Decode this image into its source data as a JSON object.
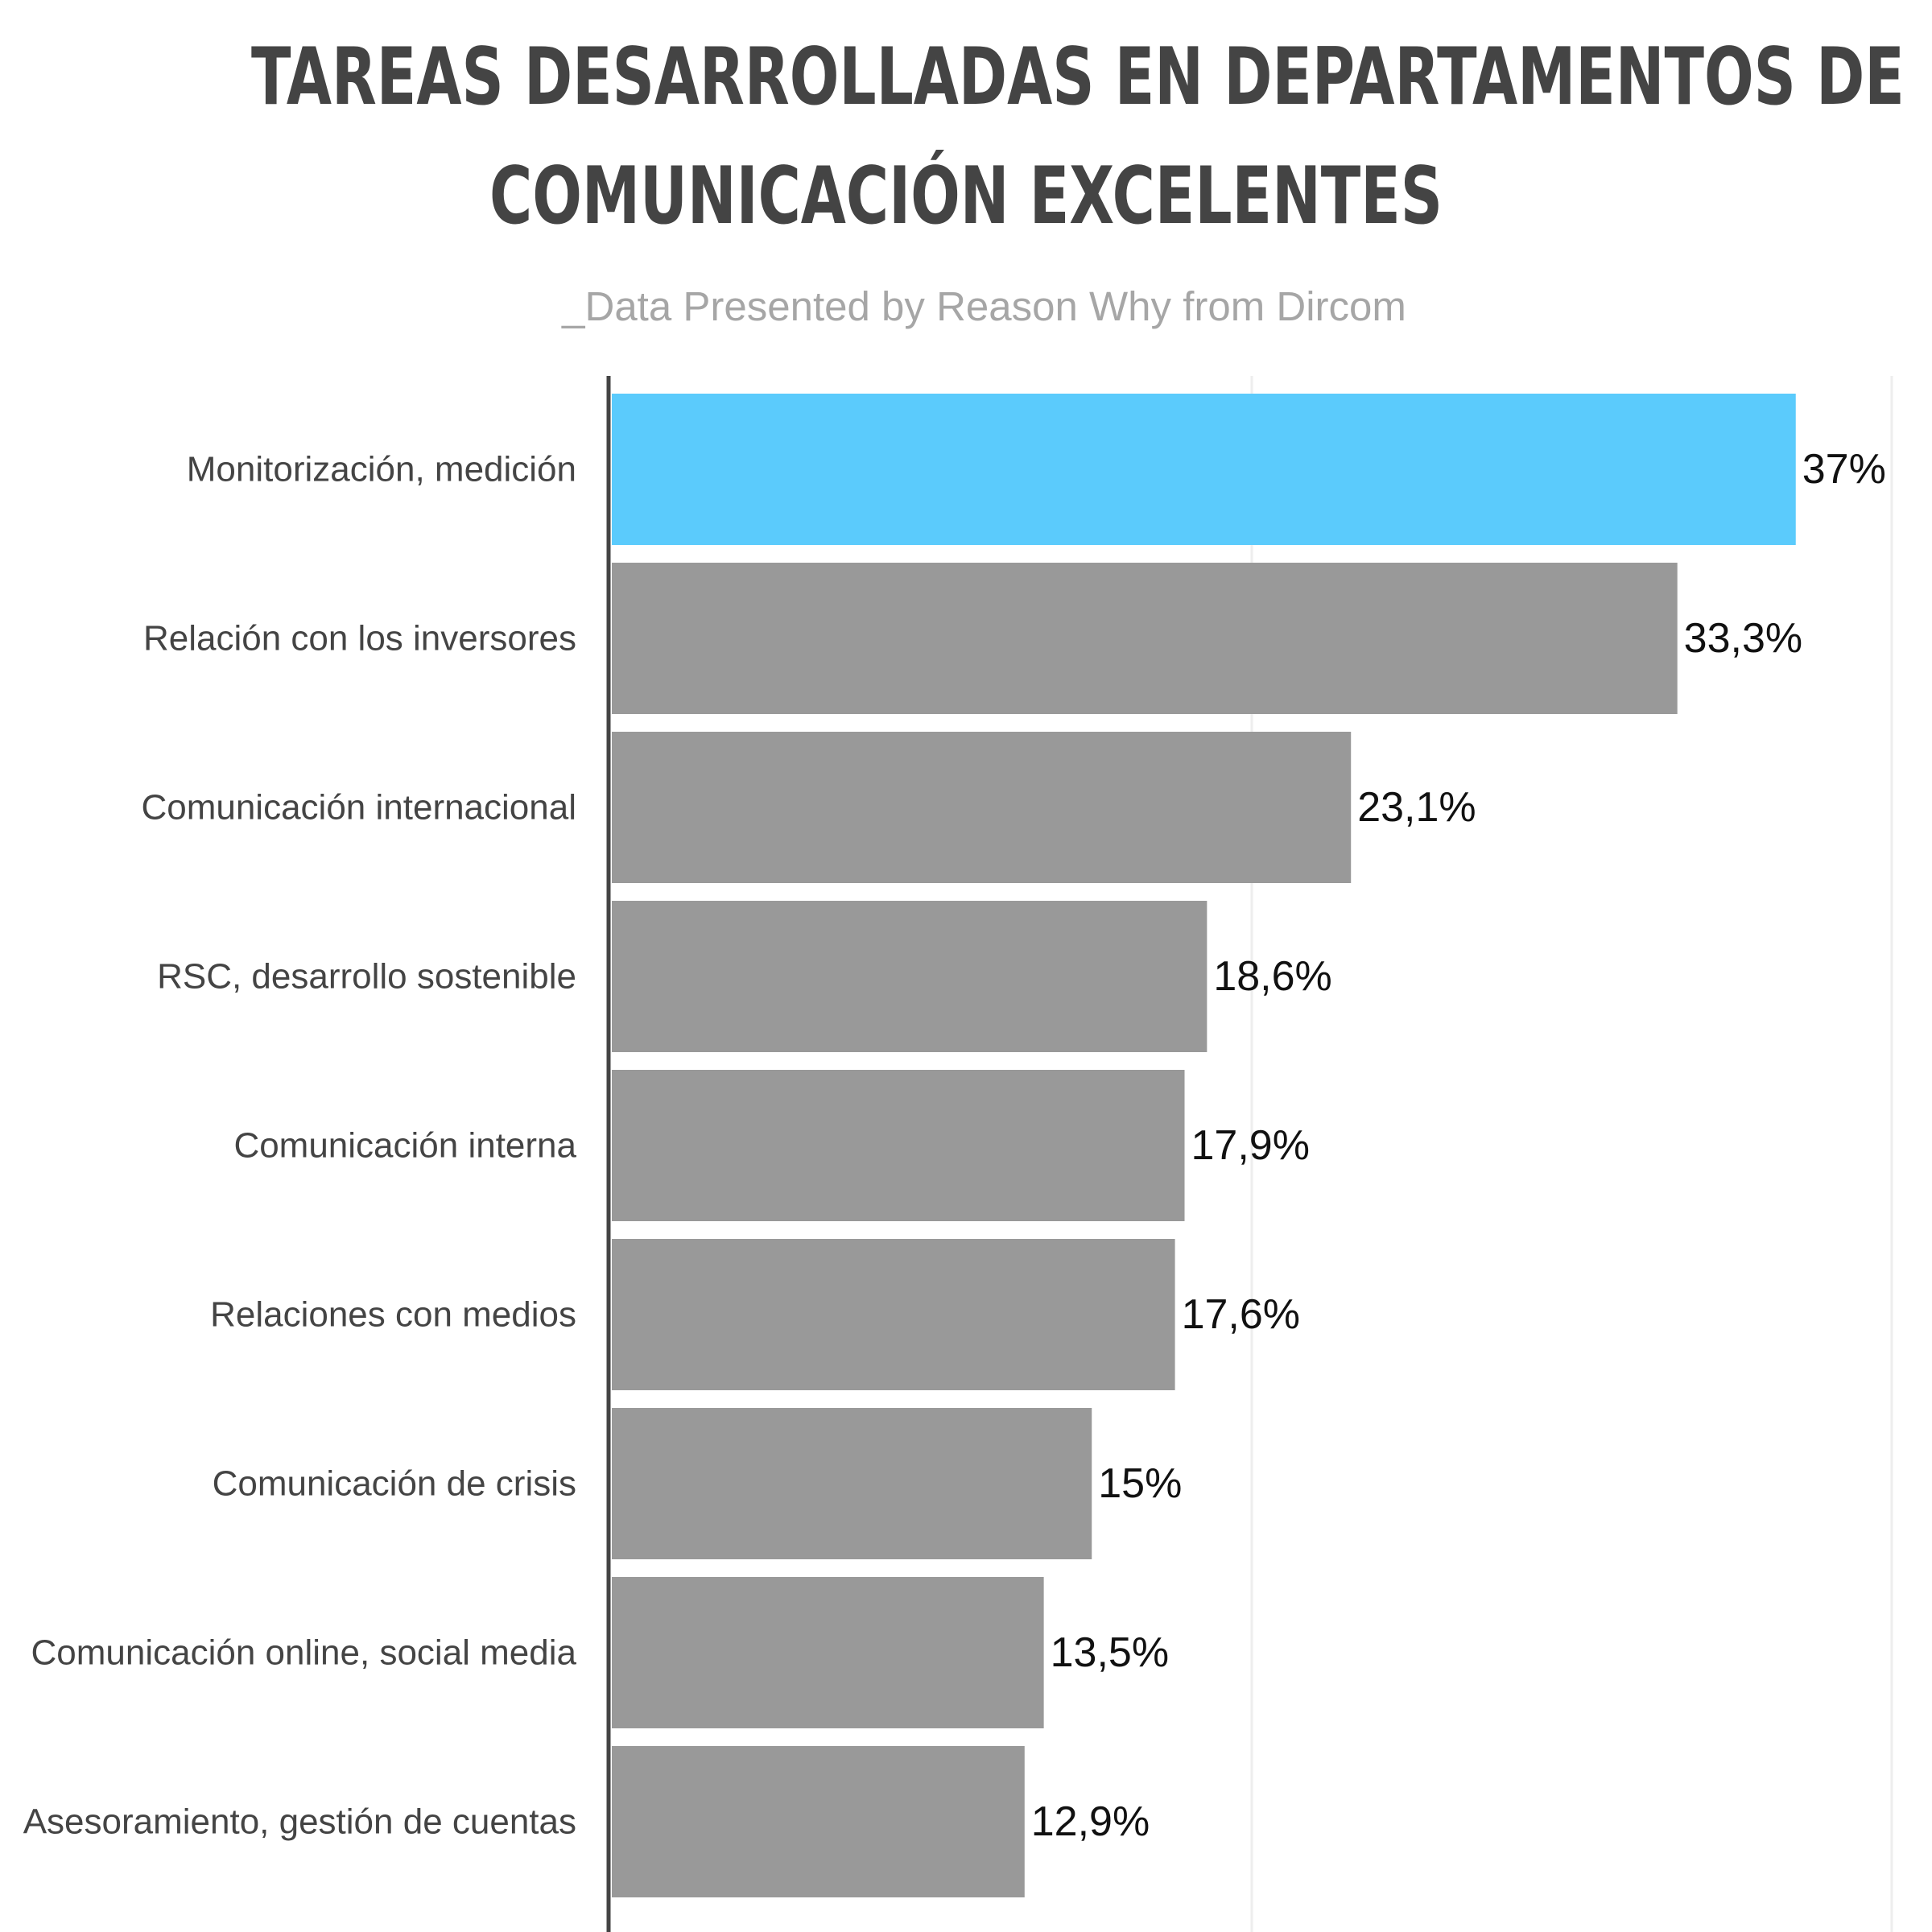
{
  "header": {
    "title_line1": "TAREAS DESARROLLADAS EN DEPARTAMENTOS DE",
    "title_line2": "COMUNICACIÓN EXCELENTES",
    "subtitle": "_Data Presented by Reason Why from Dircom"
  },
  "chart_data": {
    "type": "bar",
    "orientation": "horizontal",
    "title": "TAREAS DESARROLLADAS EN DEPARTAMENTOS DE COMUNICACIÓN EXCELENTES",
    "subtitle": "_Data Presented by Reason Why from Dircom",
    "xlabel": "",
    "ylabel": "",
    "xlim": [
      0,
      40
    ],
    "grid": true,
    "categories": [
      "Monitorización, medición",
      "Relación con los inversores",
      "Comunicación internacional",
      "RSC, desarrollo sostenible",
      "Comunicación interna",
      "Relaciones con medios",
      "Comunicación de crisis",
      "Comunicación online, social media",
      "Asesoramiento, gestión de cuentas"
    ],
    "values": [
      37,
      33.3,
      23.1,
      18.6,
      17.9,
      17.6,
      15,
      13.5,
      12.9
    ],
    "value_labels": [
      "37%",
      "33,3%",
      "23,1%",
      "18,6%",
      "17,9%",
      "17,6%",
      "15%",
      "13,5%",
      "12,9%"
    ],
    "colors": {
      "highlight": "#5bcbfc",
      "bar": "#999999",
      "axis": "#444444",
      "grid": "#eeeeee",
      "category_text": "#444444",
      "value_text": "#111111"
    },
    "highlight_index": 0
  }
}
